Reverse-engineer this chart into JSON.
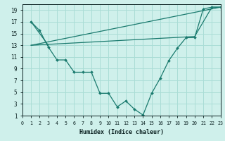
{
  "background_color": "#cff0eb",
  "grid_color": "#aaddd6",
  "line_color": "#1a7a6e",
  "xlabel": "Humidex (Indice chaleur)",
  "xlim": [
    0,
    23
  ],
  "ylim": [
    1,
    20
  ],
  "xticks": [
    0,
    1,
    2,
    3,
    4,
    5,
    6,
    7,
    8,
    9,
    10,
    11,
    12,
    13,
    14,
    15,
    16,
    17,
    18,
    19,
    20,
    21,
    22,
    23
  ],
  "yticks": [
    1,
    3,
    5,
    7,
    9,
    11,
    13,
    15,
    17,
    19
  ],
  "line1_x": [
    1,
    2,
    3,
    4,
    5,
    6,
    7,
    8,
    9,
    10,
    11,
    12,
    13,
    14,
    15,
    16,
    17,
    18,
    19,
    20,
    21,
    22,
    23
  ],
  "line1_y": [
    17.0,
    15.5,
    12.7,
    10.5,
    10.5,
    8.4,
    8.4,
    8.4,
    4.8,
    4.8,
    2.5,
    3.5,
    2.1,
    1.1,
    4.8,
    7.4,
    10.4,
    12.5,
    14.3,
    14.3,
    19.2,
    19.5,
    19.5
  ],
  "line2_x": [
    1,
    23
  ],
  "line2_y": [
    13.0,
    19.5
  ],
  "line3_x": [
    1,
    20,
    22,
    23
  ],
  "line3_y": [
    13.0,
    14.5,
    19.5,
    19.5
  ],
  "line4_x": [
    1,
    3
  ],
  "line4_y": [
    17.0,
    13.0
  ]
}
